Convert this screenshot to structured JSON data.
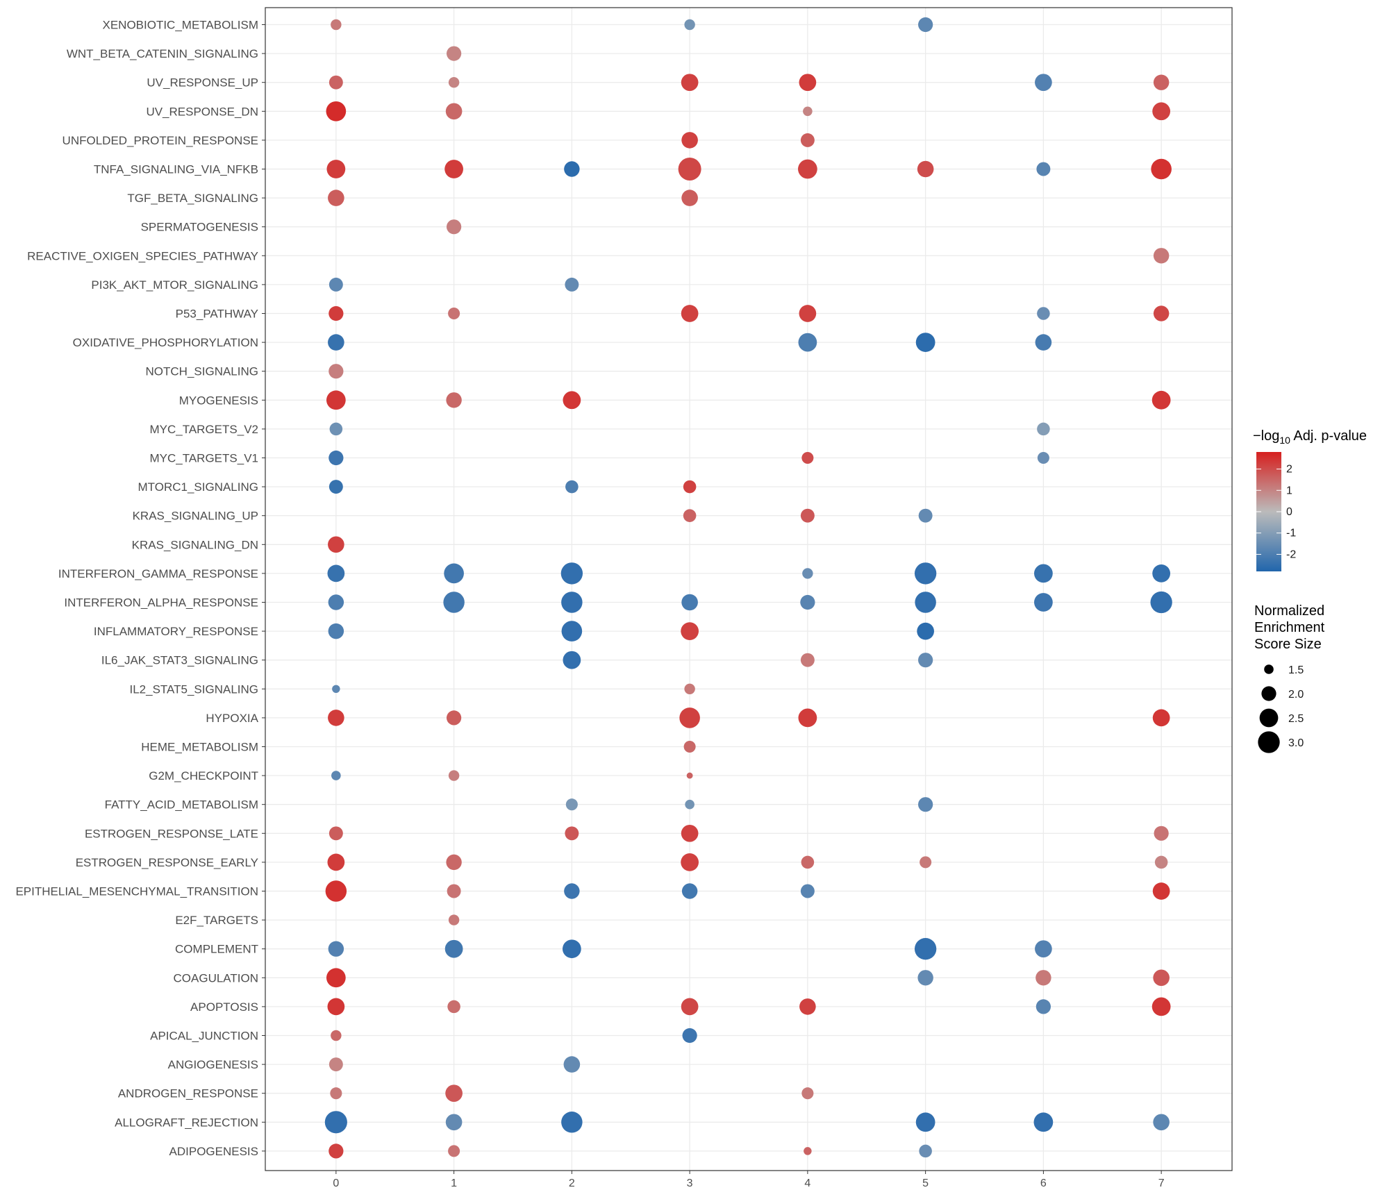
{
  "chart_data": {
    "type": "scatter",
    "categories": [
      "ADIPOGENESIS",
      "ALLOGRAFT_REJECTION",
      "ANDROGEN_RESPONSE",
      "ANGIOGENESIS",
      "APICAL_JUNCTION",
      "APOPTOSIS",
      "COAGULATION",
      "COMPLEMENT",
      "E2F_TARGETS",
      "EPITHELIAL_MESENCHYMAL_TRANSITION",
      "ESTROGEN_RESPONSE_EARLY",
      "ESTROGEN_RESPONSE_LATE",
      "FATTY_ACID_METABOLISM",
      "G2M_CHECKPOINT",
      "HEME_METABOLISM",
      "HYPOXIA",
      "IL2_STAT5_SIGNALING",
      "IL6_JAK_STAT3_SIGNALING",
      "INFLAMMATORY_RESPONSE",
      "INTERFERON_ALPHA_RESPONSE",
      "INTERFERON_GAMMA_RESPONSE",
      "KRAS_SIGNALING_DN",
      "KRAS_SIGNALING_UP",
      "MTORC1_SIGNALING",
      "MYC_TARGETS_V1",
      "MYC_TARGETS_V2",
      "MYOGENESIS",
      "NOTCH_SIGNALING",
      "OXIDATIVE_PHOSPHORYLATION",
      "P53_PATHWAY",
      "PI3K_AKT_MTOR_SIGNALING",
      "REACTIVE_OXIGEN_SPECIES_PATHWAY",
      "SPERMATOGENESIS",
      "TGF_BETA_SIGNALING",
      "TNFA_SIGNALING_VIA_NFKB",
      "UNFOLDED_PROTEIN_RESPONSE",
      "UV_RESPONSE_DN",
      "UV_RESPONSE_UP",
      "WNT_BETA_CATENIN_SIGNALING",
      "XENOBIOTIC_METABOLISM"
    ],
    "x_ticks": [
      "0",
      "1",
      "2",
      "3",
      "4",
      "5",
      "6",
      "7"
    ],
    "xlim": [
      -0.6,
      7.6
    ],
    "grid": true,
    "color_scale": {
      "low": "#2166ac",
      "mid": "#bbbbbb",
      "high": "#d6201f",
      "limits": [
        -2.8,
        2.8
      ]
    },
    "size_scale": {
      "range": [
        1.2,
        3.2
      ]
    },
    "legend_color": {
      "title_prefix": "−log",
      "title_sub": "10",
      "title_suffix": " Adj. p-value",
      "ticks": [
        {
          "label": "2",
          "value": 2
        },
        {
          "label": "1",
          "value": 1
        },
        {
          "label": "0",
          "value": 0
        },
        {
          "label": "-1",
          "value": -1
        },
        {
          "label": "-2",
          "value": -2
        }
      ],
      "position": "right"
    },
    "legend_size": {
      "title_lines": [
        "Normalized",
        "Enrichment",
        "Score Size"
      ],
      "entries": [
        {
          "label": "1.5",
          "value": 1.5
        },
        {
          "label": "2.0",
          "value": 2.0
        },
        {
          "label": "2.5",
          "value": 2.5
        },
        {
          "label": "3.0",
          "value": 3.0
        }
      ],
      "position": "right"
    },
    "points": [
      {
        "cat": "XENOBIOTIC_METABOLISM",
        "x": 0,
        "color": 1.2,
        "size": 1.6
      },
      {
        "cat": "XENOBIOTIC_METABOLISM",
        "x": 3,
        "color": -1.3,
        "size": 1.6
      },
      {
        "cat": "XENOBIOTIC_METABOLISM",
        "x": 5,
        "color": -1.7,
        "size": 2.0
      },
      {
        "cat": "WNT_BETA_CATENIN_SIGNALING",
        "x": 1,
        "color": 1.0,
        "size": 2.0
      },
      {
        "cat": "UV_RESPONSE_UP",
        "x": 0,
        "color": 1.6,
        "size": 1.9
      },
      {
        "cat": "UV_RESPONSE_UP",
        "x": 1,
        "color": 1.0,
        "size": 1.6
      },
      {
        "cat": "UV_RESPONSE_UP",
        "x": 3,
        "color": 2.2,
        "size": 2.3
      },
      {
        "cat": "UV_RESPONSE_UP",
        "x": 4,
        "color": 2.3,
        "size": 2.3
      },
      {
        "cat": "UV_RESPONSE_UP",
        "x": 6,
        "color": -1.9,
        "size": 2.3
      },
      {
        "cat": "UV_RESPONSE_UP",
        "x": 7,
        "color": 1.6,
        "size": 2.1
      },
      {
        "cat": "UV_RESPONSE_DN",
        "x": 0,
        "color": 2.6,
        "size": 2.7
      },
      {
        "cat": "UV_RESPONSE_DN",
        "x": 1,
        "color": 1.5,
        "size": 2.2
      },
      {
        "cat": "UV_RESPONSE_DN",
        "x": 4,
        "color": 1.0,
        "size": 1.5
      },
      {
        "cat": "UV_RESPONSE_DN",
        "x": 7,
        "color": 2.2,
        "size": 2.4
      },
      {
        "cat": "UNFOLDED_PROTEIN_RESPONSE",
        "x": 3,
        "color": 2.2,
        "size": 2.2
      },
      {
        "cat": "UNFOLDED_PROTEIN_RESPONSE",
        "x": 4,
        "color": 1.7,
        "size": 1.9
      },
      {
        "cat": "TNFA_SIGNALING_VIA_NFKB",
        "x": 0,
        "color": 2.3,
        "size": 2.5
      },
      {
        "cat": "TNFA_SIGNALING_VIA_NFKB",
        "x": 1,
        "color": 2.3,
        "size": 2.5
      },
      {
        "cat": "TNFA_SIGNALING_VIA_NFKB",
        "x": 2,
        "color": -2.6,
        "size": 2.1
      },
      {
        "cat": "TNFA_SIGNALING_VIA_NFKB",
        "x": 3,
        "color": 2.1,
        "size": 3.3
      },
      {
        "cat": "TNFA_SIGNALING_VIA_NFKB",
        "x": 4,
        "color": 2.2,
        "size": 2.6
      },
      {
        "cat": "TNFA_SIGNALING_VIA_NFKB",
        "x": 5,
        "color": 2.0,
        "size": 2.2
      },
      {
        "cat": "TNFA_SIGNALING_VIA_NFKB",
        "x": 6,
        "color": -1.8,
        "size": 1.9
      },
      {
        "cat": "TNFA_SIGNALING_VIA_NFKB",
        "x": 7,
        "color": 2.5,
        "size": 2.8
      },
      {
        "cat": "TGF_BETA_SIGNALING",
        "x": 0,
        "color": 1.7,
        "size": 2.2
      },
      {
        "cat": "TGF_BETA_SIGNALING",
        "x": 3,
        "color": 1.7,
        "size": 2.2
      },
      {
        "cat": "SPERMATOGENESIS",
        "x": 1,
        "color": 1.1,
        "size": 2.0
      },
      {
        "cat": "REACTIVE_OXIGEN_SPECIES_PATHWAY",
        "x": 7,
        "color": 1.2,
        "size": 2.1
      },
      {
        "cat": "PI3K_AKT_MTOR_SIGNALING",
        "x": 0,
        "color": -1.7,
        "size": 1.9
      },
      {
        "cat": "PI3K_AKT_MTOR_SIGNALING",
        "x": 2,
        "color": -1.6,
        "size": 1.9
      },
      {
        "cat": "P53_PATHWAY",
        "x": 0,
        "color": 2.3,
        "size": 2.0
      },
      {
        "cat": "P53_PATHWAY",
        "x": 1,
        "color": 1.3,
        "size": 1.7
      },
      {
        "cat": "P53_PATHWAY",
        "x": 3,
        "color": 2.2,
        "size": 2.3
      },
      {
        "cat": "P53_PATHWAY",
        "x": 4,
        "color": 2.2,
        "size": 2.3
      },
      {
        "cat": "P53_PATHWAY",
        "x": 6,
        "color": -1.5,
        "size": 1.8
      },
      {
        "cat": "P53_PATHWAY",
        "x": 7,
        "color": 2.1,
        "size": 2.1
      },
      {
        "cat": "OXIDATIVE_PHOSPHORYLATION",
        "x": 0,
        "color": -2.4,
        "size": 2.2
      },
      {
        "cat": "OXIDATIVE_PHOSPHORYLATION",
        "x": 4,
        "color": -2.0,
        "size": 2.5
      },
      {
        "cat": "OXIDATIVE_PHOSPHORYLATION",
        "x": 5,
        "color": -2.6,
        "size": 2.6
      },
      {
        "cat": "OXIDATIVE_PHOSPHORYLATION",
        "x": 6,
        "color": -2.1,
        "size": 2.2
      },
      {
        "cat": "NOTCH_SIGNALING",
        "x": 0,
        "color": 1.1,
        "size": 2.0
      },
      {
        "cat": "MYOGENESIS",
        "x": 0,
        "color": 2.4,
        "size": 2.6
      },
      {
        "cat": "MYOGENESIS",
        "x": 1,
        "color": 1.5,
        "size": 2.1
      },
      {
        "cat": "MYOGENESIS",
        "x": 2,
        "color": 2.4,
        "size": 2.4
      },
      {
        "cat": "MYOGENESIS",
        "x": 7,
        "color": 2.4,
        "size": 2.5
      },
      {
        "cat": "MYC_TARGETS_V2",
        "x": 0,
        "color": -1.4,
        "size": 1.8
      },
      {
        "cat": "MYC_TARGETS_V2",
        "x": 6,
        "color": -1.0,
        "size": 1.8
      },
      {
        "cat": "MYC_TARGETS_V1",
        "x": 0,
        "color": -2.3,
        "size": 2.0
      },
      {
        "cat": "MYC_TARGETS_V1",
        "x": 4,
        "color": 2.0,
        "size": 1.7
      },
      {
        "cat": "MYC_TARGETS_V1",
        "x": 6,
        "color": -1.5,
        "size": 1.7
      },
      {
        "cat": "MTORC1_SIGNALING",
        "x": 0,
        "color": -2.4,
        "size": 1.9
      },
      {
        "cat": "MTORC1_SIGNALING",
        "x": 2,
        "color": -2.0,
        "size": 1.8
      },
      {
        "cat": "MTORC1_SIGNALING",
        "x": 3,
        "color": 2.2,
        "size": 1.8
      },
      {
        "cat": "KRAS_SIGNALING_UP",
        "x": 3,
        "color": 1.6,
        "size": 1.8
      },
      {
        "cat": "KRAS_SIGNALING_UP",
        "x": 4,
        "color": 1.8,
        "size": 1.9
      },
      {
        "cat": "KRAS_SIGNALING_UP",
        "x": 5,
        "color": -1.6,
        "size": 1.9
      },
      {
        "cat": "KRAS_SIGNALING_DN",
        "x": 0,
        "color": 2.2,
        "size": 2.2
      },
      {
        "cat": "INTERFERON_GAMMA_RESPONSE",
        "x": 0,
        "color": -2.4,
        "size": 2.3
      },
      {
        "cat": "INTERFERON_GAMMA_RESPONSE",
        "x": 1,
        "color": -2.2,
        "size": 2.7
      },
      {
        "cat": "INTERFERON_GAMMA_RESPONSE",
        "x": 2,
        "color": -2.5,
        "size": 3.0
      },
      {
        "cat": "INTERFERON_GAMMA_RESPONSE",
        "x": 4,
        "color": -1.5,
        "size": 1.6
      },
      {
        "cat": "INTERFERON_GAMMA_RESPONSE",
        "x": 5,
        "color": -2.5,
        "size": 3.0
      },
      {
        "cat": "INTERFERON_GAMMA_RESPONSE",
        "x": 6,
        "color": -2.4,
        "size": 2.5
      },
      {
        "cat": "INTERFERON_GAMMA_RESPONSE",
        "x": 7,
        "color": -2.5,
        "size": 2.4
      },
      {
        "cat": "INTERFERON_ALPHA_RESPONSE",
        "x": 0,
        "color": -2.0,
        "size": 2.1
      },
      {
        "cat": "INTERFERON_ALPHA_RESPONSE",
        "x": 1,
        "color": -2.2,
        "size": 2.9
      },
      {
        "cat": "INTERFERON_ALPHA_RESPONSE",
        "x": 2,
        "color": -2.5,
        "size": 2.9
      },
      {
        "cat": "INTERFERON_ALPHA_RESPONSE",
        "x": 3,
        "color": -2.1,
        "size": 2.2
      },
      {
        "cat": "INTERFERON_ALPHA_RESPONSE",
        "x": 4,
        "color": -1.8,
        "size": 2.0
      },
      {
        "cat": "INTERFERON_ALPHA_RESPONSE",
        "x": 5,
        "color": -2.5,
        "size": 2.9
      },
      {
        "cat": "INTERFERON_ALPHA_RESPONSE",
        "x": 6,
        "color": -2.3,
        "size": 2.5
      },
      {
        "cat": "INTERFERON_ALPHA_RESPONSE",
        "x": 7,
        "color": -2.5,
        "size": 3.0
      },
      {
        "cat": "INFLAMMATORY_RESPONSE",
        "x": 0,
        "color": -2.0,
        "size": 2.1
      },
      {
        "cat": "INFLAMMATORY_RESPONSE",
        "x": 2,
        "color": -2.5,
        "size": 2.8
      },
      {
        "cat": "INFLAMMATORY_RESPONSE",
        "x": 3,
        "color": 2.2,
        "size": 2.4
      },
      {
        "cat": "INFLAMMATORY_RESPONSE",
        "x": 5,
        "color": -2.6,
        "size": 2.3
      },
      {
        "cat": "IL6_JAK_STAT3_SIGNALING",
        "x": 2,
        "color": -2.5,
        "size": 2.4
      },
      {
        "cat": "IL6_JAK_STAT3_SIGNALING",
        "x": 4,
        "color": 1.2,
        "size": 1.9
      },
      {
        "cat": "IL6_JAK_STAT3_SIGNALING",
        "x": 5,
        "color": -1.6,
        "size": 2.0
      },
      {
        "cat": "IL2_STAT5_SIGNALING",
        "x": 0,
        "color": -1.7,
        "size": 1.4
      },
      {
        "cat": "IL2_STAT5_SIGNALING",
        "x": 3,
        "color": 1.2,
        "size": 1.6
      },
      {
        "cat": "HYPOXIA",
        "x": 0,
        "color": 2.3,
        "size": 2.2
      },
      {
        "cat": "HYPOXIA",
        "x": 1,
        "color": 1.7,
        "size": 2.0
      },
      {
        "cat": "HYPOXIA",
        "x": 3,
        "color": 2.2,
        "size": 2.8
      },
      {
        "cat": "HYPOXIA",
        "x": 4,
        "color": 2.3,
        "size": 2.5
      },
      {
        "cat": "HYPOXIA",
        "x": 7,
        "color": 2.4,
        "size": 2.3
      },
      {
        "cat": "HEME_METABOLISM",
        "x": 3,
        "color": 1.5,
        "size": 1.7
      },
      {
        "cat": "G2M_CHECKPOINT",
        "x": 0,
        "color": -1.7,
        "size": 1.5
      },
      {
        "cat": "G2M_CHECKPOINT",
        "x": 1,
        "color": 1.1,
        "size": 1.6
      },
      {
        "cat": "G2M_CHECKPOINT",
        "x": 3,
        "color": 1.6,
        "size": 1.3
      },
      {
        "cat": "FATTY_ACID_METABOLISM",
        "x": 2,
        "color": -1.2,
        "size": 1.7
      },
      {
        "cat": "FATTY_ACID_METABOLISM",
        "x": 3,
        "color": -1.3,
        "size": 1.5
      },
      {
        "cat": "FATTY_ACID_METABOLISM",
        "x": 5,
        "color": -1.7,
        "size": 2.0
      },
      {
        "cat": "ESTROGEN_RESPONSE_LATE",
        "x": 0,
        "color": 1.7,
        "size": 1.9
      },
      {
        "cat": "ESTROGEN_RESPONSE_LATE",
        "x": 2,
        "color": 1.8,
        "size": 1.9
      },
      {
        "cat": "ESTROGEN_RESPONSE_LATE",
        "x": 3,
        "color": 2.2,
        "size": 2.3
      },
      {
        "cat": "ESTROGEN_RESPONSE_LATE",
        "x": 7,
        "color": 1.3,
        "size": 2.0
      },
      {
        "cat": "ESTROGEN_RESPONSE_EARLY",
        "x": 0,
        "color": 2.3,
        "size": 2.3
      },
      {
        "cat": "ESTROGEN_RESPONSE_EARLY",
        "x": 1,
        "color": 1.5,
        "size": 2.1
      },
      {
        "cat": "ESTROGEN_RESPONSE_EARLY",
        "x": 3,
        "color": 2.2,
        "size": 2.4
      },
      {
        "cat": "ESTROGEN_RESPONSE_EARLY",
        "x": 4,
        "color": 1.5,
        "size": 1.8
      },
      {
        "cat": "ESTROGEN_RESPONSE_EARLY",
        "x": 5,
        "color": 1.2,
        "size": 1.7
      },
      {
        "cat": "ESTROGEN_RESPONSE_EARLY",
        "x": 7,
        "color": 1.0,
        "size": 1.8
      },
      {
        "cat": "EPITHELIAL_MESENCHYMAL_TRANSITION",
        "x": 0,
        "color": 2.5,
        "size": 2.9
      },
      {
        "cat": "EPITHELIAL_MESENCHYMAL_TRANSITION",
        "x": 1,
        "color": 1.3,
        "size": 1.9
      },
      {
        "cat": "EPITHELIAL_MESENCHYMAL_TRANSITION",
        "x": 2,
        "color": -2.3,
        "size": 2.1
      },
      {
        "cat": "EPITHELIAL_MESENCHYMAL_TRANSITION",
        "x": 3,
        "color": -2.2,
        "size": 2.1
      },
      {
        "cat": "EPITHELIAL_MESENCHYMAL_TRANSITION",
        "x": 4,
        "color": -1.8,
        "size": 1.9
      },
      {
        "cat": "EPITHELIAL_MESENCHYMAL_TRANSITION",
        "x": 7,
        "color": 2.4,
        "size": 2.3
      },
      {
        "cat": "E2F_TARGETS",
        "x": 1,
        "color": 1.2,
        "size": 1.6
      },
      {
        "cat": "COMPLEMENT",
        "x": 0,
        "color": -1.9,
        "size": 2.1
      },
      {
        "cat": "COMPLEMENT",
        "x": 1,
        "color": -2.2,
        "size": 2.4
      },
      {
        "cat": "COMPLEMENT",
        "x": 2,
        "color": -2.5,
        "size": 2.5
      },
      {
        "cat": "COMPLEMENT",
        "x": 5,
        "color": -2.5,
        "size": 3.0
      },
      {
        "cat": "COMPLEMENT",
        "x": 6,
        "color": -1.9,
        "size": 2.3
      },
      {
        "cat": "COAGULATION",
        "x": 0,
        "color": 2.5,
        "size": 2.6
      },
      {
        "cat": "COAGULATION",
        "x": 5,
        "color": -1.6,
        "size": 2.1
      },
      {
        "cat": "COAGULATION",
        "x": 6,
        "color": 1.2,
        "size": 2.1
      },
      {
        "cat": "COAGULATION",
        "x": 7,
        "color": 1.8,
        "size": 2.2
      },
      {
        "cat": "APOPTOSIS",
        "x": 0,
        "color": 2.4,
        "size": 2.3
      },
      {
        "cat": "APOPTOSIS",
        "x": 1,
        "color": 1.4,
        "size": 1.8
      },
      {
        "cat": "APOPTOSIS",
        "x": 3,
        "color": 2.1,
        "size": 2.3
      },
      {
        "cat": "APOPTOSIS",
        "x": 4,
        "color": 2.2,
        "size": 2.2
      },
      {
        "cat": "APOPTOSIS",
        "x": 6,
        "color": -1.8,
        "size": 2.0
      },
      {
        "cat": "APOPTOSIS",
        "x": 7,
        "color": 2.4,
        "size": 2.5
      },
      {
        "cat": "APICAL_JUNCTION",
        "x": 0,
        "color": 1.5,
        "size": 1.6
      },
      {
        "cat": "APICAL_JUNCTION",
        "x": 3,
        "color": -2.3,
        "size": 2.0
      },
      {
        "cat": "ANGIOGENESIS",
        "x": 0,
        "color": 1.0,
        "size": 1.9
      },
      {
        "cat": "ANGIOGENESIS",
        "x": 2,
        "color": -1.6,
        "size": 2.2
      },
      {
        "cat": "ANDROGEN_RESPONSE",
        "x": 0,
        "color": 1.2,
        "size": 1.7
      },
      {
        "cat": "ANDROGEN_RESPONSE",
        "x": 1,
        "color": 1.8,
        "size": 2.3
      },
      {
        "cat": "ANDROGEN_RESPONSE",
        "x": 4,
        "color": 1.2,
        "size": 1.7
      },
      {
        "cat": "ALLOGRAFT_REJECTION",
        "x": 0,
        "color": -2.5,
        "size": 3.1
      },
      {
        "cat": "ALLOGRAFT_REJECTION",
        "x": 1,
        "color": -1.6,
        "size": 2.2
      },
      {
        "cat": "ALLOGRAFT_REJECTION",
        "x": 2,
        "color": -2.5,
        "size": 2.9
      },
      {
        "cat": "ALLOGRAFT_REJECTION",
        "x": 5,
        "color": -2.5,
        "size": 2.6
      },
      {
        "cat": "ALLOGRAFT_REJECTION",
        "x": 6,
        "color": -2.5,
        "size": 2.6
      },
      {
        "cat": "ALLOGRAFT_REJECTION",
        "x": 7,
        "color": -1.7,
        "size": 2.2
      },
      {
        "cat": "ADIPOGENESIS",
        "x": 0,
        "color": 2.2,
        "size": 2.0
      },
      {
        "cat": "ADIPOGENESIS",
        "x": 1,
        "color": 1.3,
        "size": 1.7
      },
      {
        "cat": "ADIPOGENESIS",
        "x": 4,
        "color": 1.6,
        "size": 1.4
      },
      {
        "cat": "ADIPOGENESIS",
        "x": 5,
        "color": -1.5,
        "size": 1.8
      }
    ]
  }
}
